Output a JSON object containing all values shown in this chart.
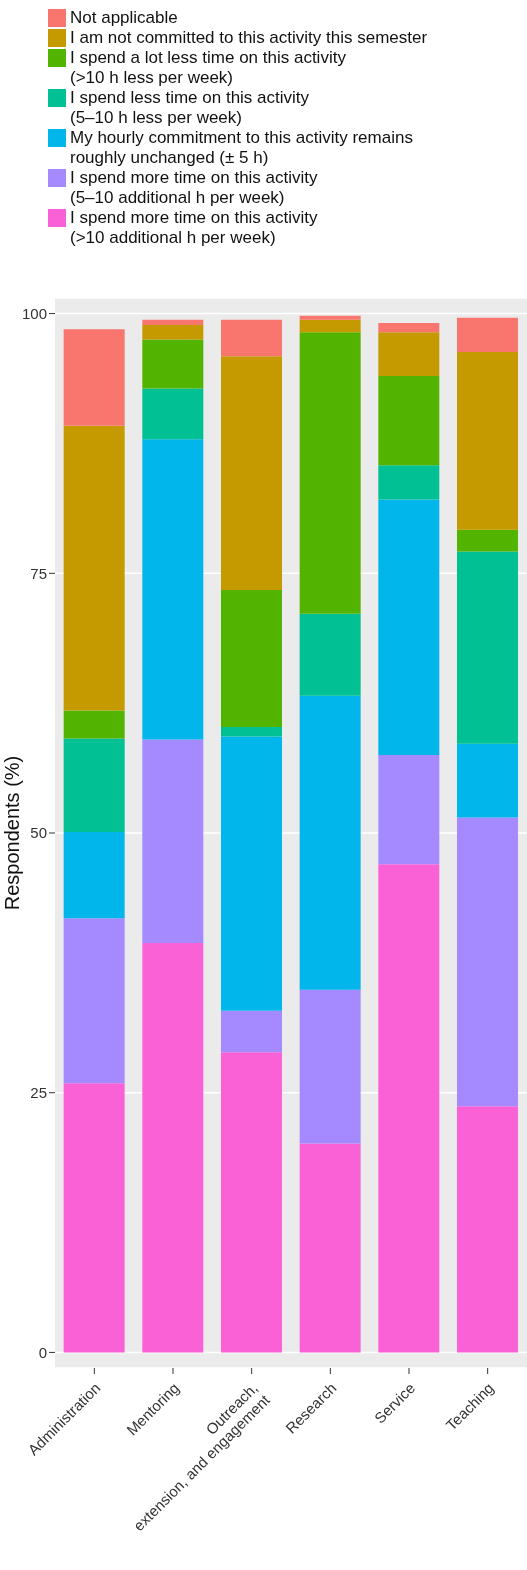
{
  "chart_data": {
    "type": "bar",
    "stacked": true,
    "ylabel": "Respondents (%)",
    "categories": [
      "Administration",
      "Mentoring",
      "Outreach,\nextension, and engagement",
      "Research",
      "Service",
      "Teaching"
    ],
    "series": [
      {
        "name": "I spend more time on this activity\n(>10 additional h per week)",
        "color": "#fb61d7",
        "values": [
          25.9,
          39.4,
          28.9,
          20.1,
          47.0,
          23.7
        ]
      },
      {
        "name": "I spend more time on this activity\n(5–10 additional h per week)",
        "color": "#a58aff",
        "values": [
          15.9,
          19.6,
          4.0,
          14.8,
          10.5,
          27.8
        ]
      },
      {
        "name": "My hourly commitment to this activity remains\nroughly unchanged (± 5 h)",
        "color": "#00b6eb",
        "values": [
          8.3,
          28.9,
          26.4,
          28.3,
          24.6,
          7.1
        ]
      },
      {
        "name": "I spend less time on this activity\n(5–10 h less per week)",
        "color": "#00c094",
        "values": [
          9.0,
          4.9,
          0.9,
          7.9,
          3.3,
          18.5
        ]
      },
      {
        "name": "I spend a lot less time on this activity\n(>10 h less per week)",
        "color": "#53b400",
        "values": [
          2.7,
          4.7,
          13.2,
          27.1,
          8.6,
          2.1
        ]
      },
      {
        "name": "I am not committed to this activity this semester",
        "color": "#c49a00",
        "values": [
          27.4,
          1.4,
          22.5,
          1.2,
          4.2,
          17.1
        ]
      },
      {
        "name": "Not applicable",
        "color": "#f8766d",
        "values": [
          9.3,
          0.5,
          3.5,
          0.4,
          0.9,
          3.3
        ]
      }
    ],
    "ylim": [
      -1.5,
      101.5
    ],
    "yticks": [
      0,
      25,
      50,
      75,
      100
    ],
    "grid": "y",
    "legend": "top"
  }
}
